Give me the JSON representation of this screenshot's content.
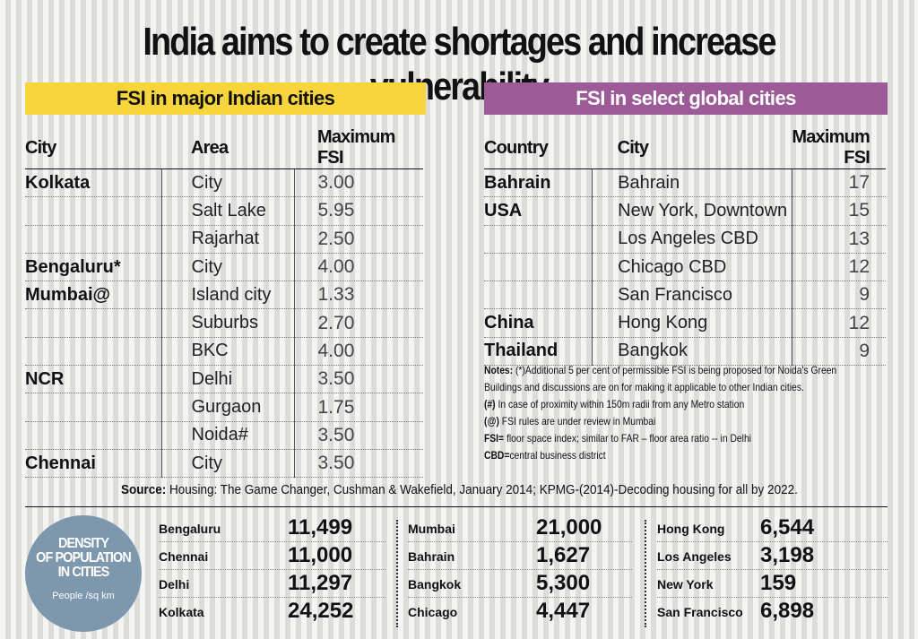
{
  "title": "India aims to create shortages and increase vulnerability",
  "india_section": {
    "banner": "FSI in major Indian cities",
    "headers": [
      "City",
      "Area",
      "Maximum FSI"
    ],
    "rows": [
      [
        "Kolkata",
        "City",
        "3.00"
      ],
      [
        "",
        "Salt Lake",
        "5.95"
      ],
      [
        "",
        "Rajarhat",
        "2.50"
      ],
      [
        "Bengaluru*",
        "City",
        "4.00"
      ],
      [
        "Mumbai@",
        "Island city",
        "1.33"
      ],
      [
        "",
        "Suburbs",
        "2.70"
      ],
      [
        "",
        "BKC",
        "4.00"
      ],
      [
        "NCR",
        "Delhi",
        "3.50"
      ],
      [
        "",
        "Gurgaon",
        "1.75"
      ],
      [
        "",
        "Noida#",
        "3.50"
      ],
      [
        "Chennai",
        "City",
        "3.50"
      ]
    ]
  },
  "global_section": {
    "banner": "FSI in select  global cities",
    "headers": [
      "Country",
      "City",
      "Maximum FSI"
    ],
    "rows": [
      [
        "Bahrain",
        "Bahrain",
        "17"
      ],
      [
        "USA",
        "New York, Downtown",
        "15"
      ],
      [
        "",
        "Los Angeles CBD",
        "13"
      ],
      [
        "",
        "Chicago CBD",
        "12"
      ],
      [
        "",
        "San Francisco",
        "9"
      ],
      [
        "China",
        "Hong Kong",
        "12"
      ],
      [
        "Thailand",
        "Bangkok",
        "9"
      ]
    ]
  },
  "notes": {
    "label": "Notes:",
    "line1": " (*)Additional 5 per cent of permissible FSI is being proposed for Noida's Green",
    "line2": "Buildings and discussions are on for making it applicable to other Indian cities.",
    "hash_label": "(#)",
    "hash_text": " In case of proximity within 150m radii from any Metro station",
    "at_label": "(@)",
    "at_text": " FSI rules are under review in Mumbai",
    "fsi_label": "FSI=",
    "fsi_text": " floor space index; similar to FAR – floor area ratio -- in Delhi",
    "cbd_label": "CBD=",
    "cbd_text": "central business district"
  },
  "source": {
    "label": "Source:",
    "text": " Housing: The Game Changer, Cushman & Wakefield, January 2014; KPMG-(2014)-Decoding housing for all by 2022."
  },
  "density": {
    "title_line1": "DENSITY",
    "title_line2": "OF POPULATION",
    "title_line3": "IN CITIES",
    "unit": "People /sq km",
    "columns": [
      [
        {
          "city": "Bengaluru",
          "value": "11,499"
        },
        {
          "city": "Chennai",
          "value": "11,000"
        },
        {
          "city": "Delhi",
          "value": "11,297"
        },
        {
          "city": "Kolkata",
          "value": "24,252"
        }
      ],
      [
        {
          "city": "Mumbai",
          "value": "21,000"
        },
        {
          "city": "Bahrain",
          "value": "1,627"
        },
        {
          "city": "Bangkok",
          "value": "5,300"
        },
        {
          "city": "Chicago",
          "value": "4,447"
        }
      ],
      [
        {
          "city": "Hong Kong",
          "value": "6,544"
        },
        {
          "city": "Los Angeles",
          "value": "3,198"
        },
        {
          "city": "New York",
          "value": "159"
        },
        {
          "city": "San Francisco",
          "value": "6,898"
        }
      ]
    ]
  },
  "colors": {
    "india_banner": "#f7d53b",
    "global_banner": "#9c5a96",
    "density_circle": "#7d97ad"
  }
}
